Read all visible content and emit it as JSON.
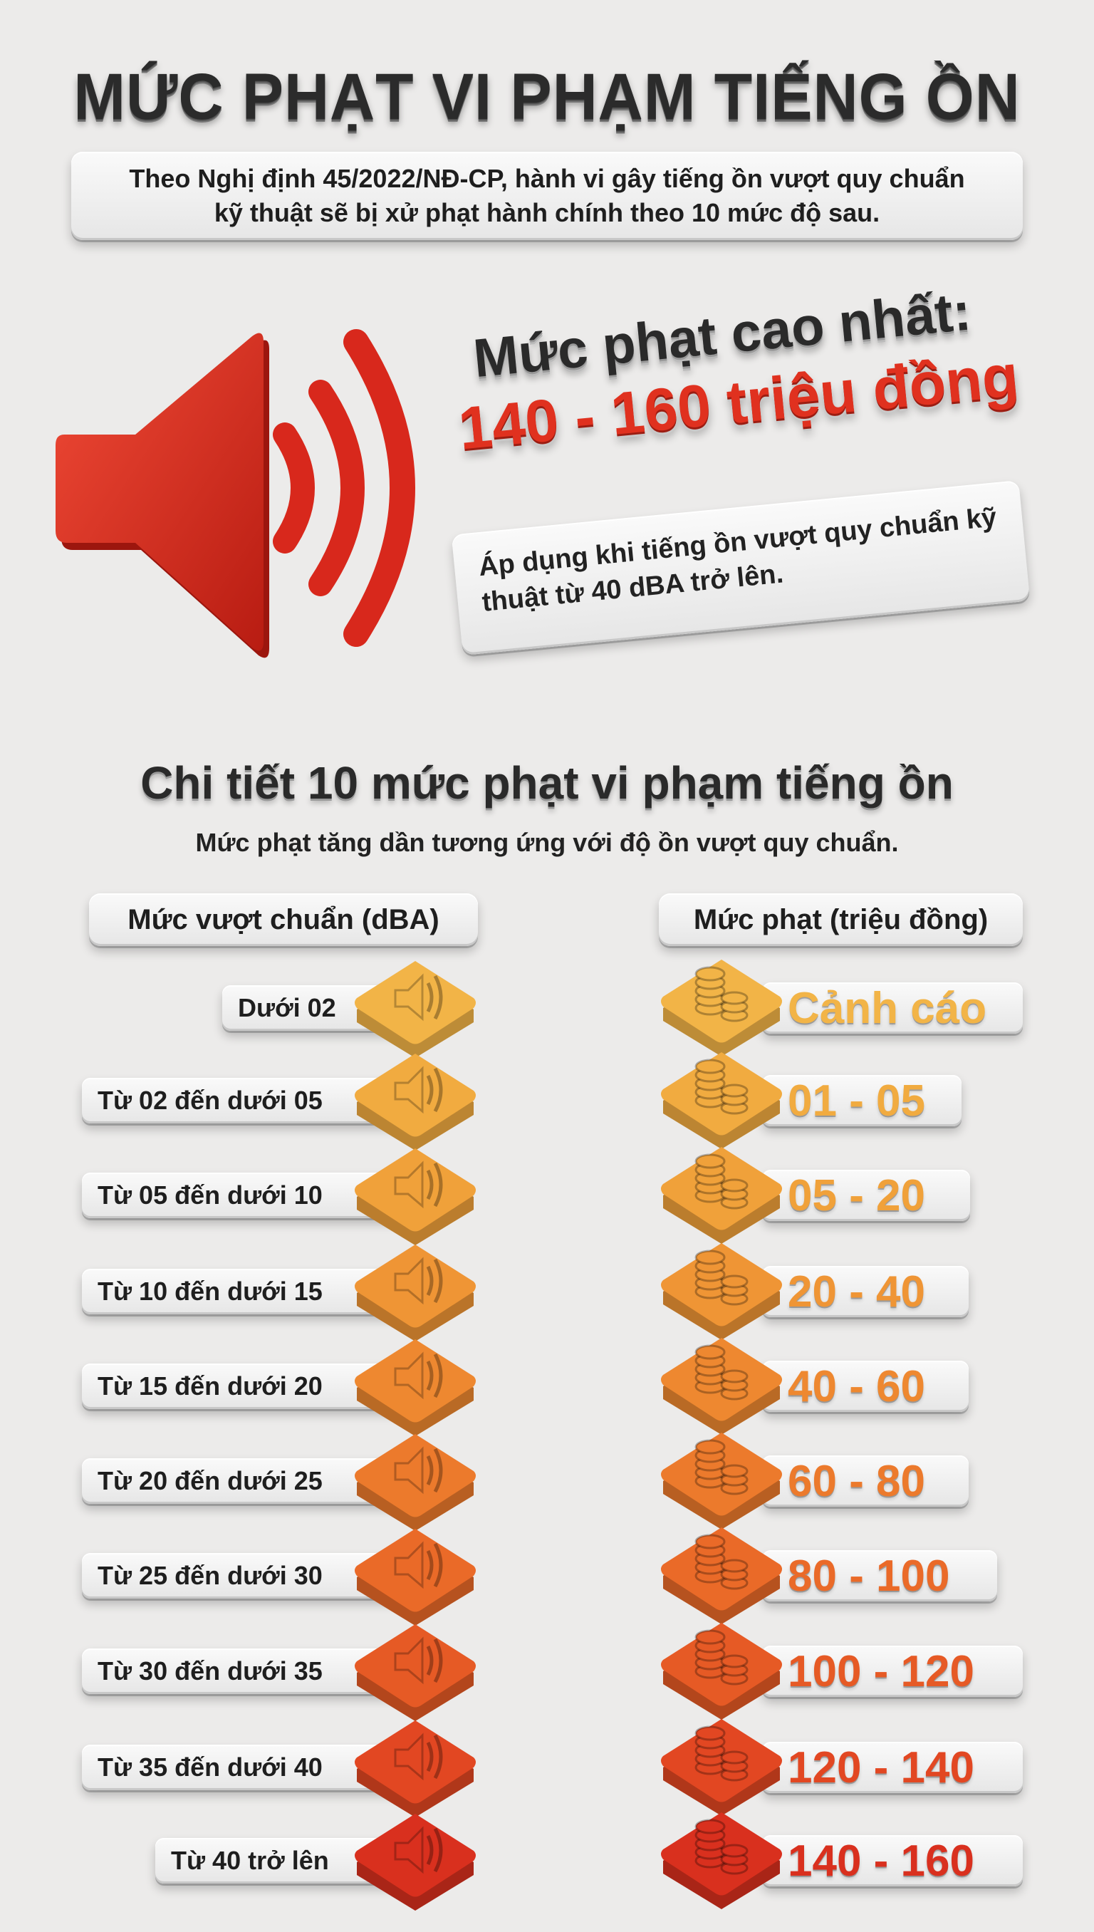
{
  "header": {
    "title": "MỨC PHẠT VI PHẠM TIẾNG ỒN",
    "intro_line1": "Theo Nghị định 45/2022/NĐ-CP, hành vi gây tiếng ồn vượt quy chuẩn",
    "intro_line2": "kỹ thuật sẽ bị xử phạt hành chính theo 10 mức độ sau."
  },
  "highlight": {
    "label": "Mức phạt cao nhất:",
    "amount": "140 - 160 triệu đồng",
    "note_line1": "Áp dụng khi tiếng ồn vượt quy chuẩn kỹ",
    "note_line2": "thuật từ 40 dBA trở lên.",
    "icon": "speaker-loud-icon",
    "color": "#e0311f"
  },
  "details": {
    "title": "Chi tiết 10 mức phạt vi phạm tiếng ồn",
    "subtitle": "Mức phạt tăng dần tương ứng với độ ồn vượt quy chuẩn.",
    "col_left": "Mức vượt chuẩn (dBA)",
    "col_right": "Mức phạt (triệu đồng)",
    "rows": [
      {
        "level": "Dưới 02",
        "fine": "Cảnh cáo",
        "color": "#f2b447"
      },
      {
        "level": "Từ 02 đến dưới 05",
        "fine": "01 - 05",
        "color": "#f1ab40"
      },
      {
        "level": "Từ 05 đến dưới 10",
        "fine": "05 - 20",
        "color": "#f0a13a"
      },
      {
        "level": "Từ 10 đến dưới 15",
        "fine": "20 - 40",
        "color": "#ef9535"
      },
      {
        "level": "Từ 15 đến dưới 20",
        "fine": "40 - 60",
        "color": "#ee8830"
      },
      {
        "level": "Từ 20 đến dưới 25",
        "fine": "60 - 80",
        "color": "#ec7a2c"
      },
      {
        "level": "Từ 25 đến dưới 30",
        "fine": "80 - 100",
        "color": "#ea6a28"
      },
      {
        "level": "Từ 30 đến dưới 35",
        "fine": "100 - 120",
        "color": "#e65a25"
      },
      {
        "level": "Từ 35 đến dưới 40",
        "fine": "120 - 140",
        "color": "#e24722"
      },
      {
        "level": "Từ 40 trở lên",
        "fine": "140 - 160",
        "color": "#d9301e"
      }
    ]
  }
}
